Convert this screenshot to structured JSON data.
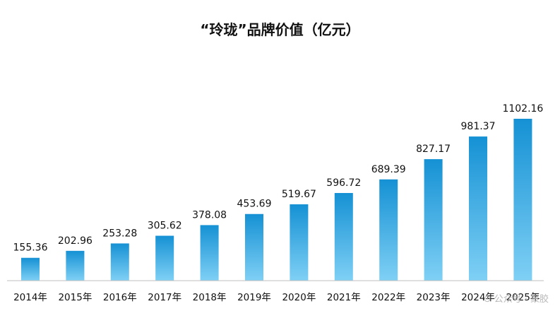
{
  "chart_data": {
    "type": "bar",
    "title": "“玲珑”品牌价值（亿元）",
    "categories": [
      "2014年",
      "2015年",
      "2016年",
      "2017年",
      "2018年",
      "2019年",
      "2020年",
      "2021年",
      "2022年",
      "2023年",
      "2024年",
      "2025年"
    ],
    "values": [
      155.36,
      202.96,
      253.28,
      305.62,
      378.08,
      453.69,
      519.67,
      596.72,
      689.39,
      827.17,
      981.37,
      1102.16
    ],
    "value_labels": [
      "155.36",
      "202.96",
      "253.28",
      "305.62",
      "378.08",
      "453.69",
      "519.67",
      "596.72",
      "689.39",
      "827.17",
      "981.37",
      "1102.16"
    ],
    "xlabel": "",
    "ylabel": "",
    "ylim": [
      0,
      1102.16
    ],
    "grid": false,
    "legend": "none",
    "colors": {
      "bar_top": "#1591d4",
      "bar_bottom": "#7fd0f5",
      "axis": "#bfbfbf"
    }
  },
  "watermark": "⊙ 公众号 · 聚胶"
}
